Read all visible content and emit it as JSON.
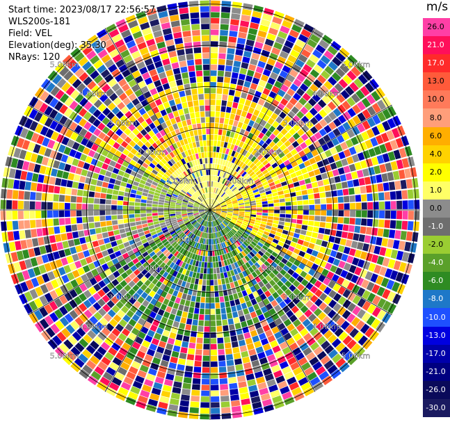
{
  "header": {
    "start_time": "Start time: 2023/08/17 22:56:57",
    "instrument": "WLS200s-181",
    "field": "Field: VEL",
    "elevation": "Elevation(deg): 35.30",
    "nrays": "NRays: 120"
  },
  "colorbar": {
    "unit": "m/s",
    "levels": [
      {
        "label": "26.0",
        "color": "#ff3fa6"
      },
      {
        "label": "21.0",
        "color": "#ff0f5a"
      },
      {
        "label": "17.0",
        "color": "#ff2a2a"
      },
      {
        "label": "13.0",
        "color": "#ff5a3a"
      },
      {
        "label": "10.0",
        "color": "#ff7a5a"
      },
      {
        "label": "8.0",
        "color": "#ff9e7a"
      },
      {
        "label": "6.0",
        "color": "#ffae00"
      },
      {
        "label": "4.0",
        "color": "#ffd200"
      },
      {
        "label": "2.0",
        "color": "#ffff00"
      },
      {
        "label": "1.0",
        "color": "#ffff66"
      },
      {
        "label": "0.0",
        "color": "#8c8c8c"
      },
      {
        "label": "-1.0",
        "color": "#6e6e6e"
      },
      {
        "label": "-2.0",
        "color": "#9acd32"
      },
      {
        "label": "-4.0",
        "color": "#5aa02a"
      },
      {
        "label": "-6.0",
        "color": "#2e8b22"
      },
      {
        "label": "-8.0",
        "color": "#1e78c8"
      },
      {
        "label": "-10.0",
        "color": "#1e50ff"
      },
      {
        "label": "-13.0",
        "color": "#0000e0"
      },
      {
        "label": "-17.0",
        "color": "#0000aa"
      },
      {
        "label": "-21.0",
        "color": "#000080"
      },
      {
        "label": "-26.0",
        "color": "#0a0a5a"
      },
      {
        "label": "-30.0",
        "color": "#1a1a60"
      }
    ]
  },
  "range_rings": [
    {
      "label": "1.00km",
      "range_km": 1
    },
    {
      "label": "2.00km",
      "range_km": 2
    },
    {
      "label": "3.00km",
      "range_km": 3
    },
    {
      "label": "4.00km",
      "range_km": 4
    },
    {
      "label": "5.00km",
      "range_km": 5
    }
  ],
  "spoke_angles_deg": [
    0,
    30,
    60,
    90,
    120,
    150
  ]
}
